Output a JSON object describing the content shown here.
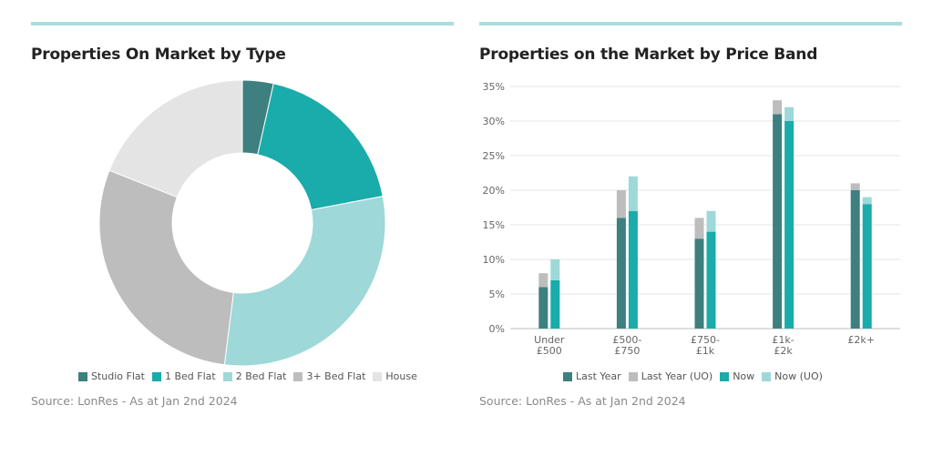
{
  "left": {
    "title": "Properties On Market by Type",
    "source": "Source: LonRes - As at Jan 2nd 2024"
  },
  "right": {
    "title": "Properties on the Market by Price Band",
    "source": "Source: LonRes - As at Jan 2nd 2024"
  },
  "colors": {
    "accent_line": "#a8dde0",
    "studio_flat": "#3e7f7f",
    "1_bed_flat": "#1aabab",
    "2_bed_flat": "#9ed8d8",
    "3plus_bed_flat": "#bdbdbd",
    "house": "#e4e4e4",
    "last_year": "#3e7f7f",
    "last_year_uo": "#bdbdbd",
    "now": "#1aabab",
    "now_uo": "#9ed8d8"
  },
  "chart_data": [
    {
      "type": "pie",
      "subtype": "donut",
      "title": "Properties On Market by Type",
      "labels": [
        "Studio Flat",
        "1 Bed Flat",
        "2 Bed Flat",
        "3+ Bed Flat",
        "House"
      ],
      "values": [
        3.5,
        18.5,
        30,
        29,
        19
      ],
      "colors": [
        "#3e7f7f",
        "#1aabab",
        "#9ed8d8",
        "#bdbdbd",
        "#e4e4e4"
      ],
      "legend": "bottom"
    },
    {
      "type": "bar",
      "subtype": "stacked-grouped",
      "title": "Properties on the Market by Price Band",
      "categories": [
        [
          "Under",
          "£500"
        ],
        [
          "£500-",
          "£750"
        ],
        [
          "£750-",
          "£1k"
        ],
        [
          "£1k-",
          "£2k"
        ],
        [
          "£2k+"
        ]
      ],
      "groups": [
        {
          "name": "Last Year",
          "stack": [
            {
              "series": "Last Year",
              "values": [
                6,
                16,
                13,
                31,
                20
              ]
            },
            {
              "series": "Last Year (UO)",
              "values": [
                2,
                4,
                3,
                2,
                1
              ]
            }
          ]
        },
        {
          "name": "Now",
          "stack": [
            {
              "series": "Now",
              "values": [
                7,
                17,
                14,
                30,
                18
              ]
            },
            {
              "series": "Now (UO)",
              "values": [
                3,
                5,
                3,
                2,
                1
              ]
            }
          ]
        }
      ],
      "legend_entries": [
        "Last Year",
        "Last Year (UO)",
        "Now",
        "Now (UO)"
      ],
      "yticks": [
        "0%",
        "5%",
        "10%",
        "15%",
        "20%",
        "25%",
        "30%",
        "35%"
      ],
      "ylim": [
        0,
        35
      ],
      "grid": true,
      "legend": "bottom"
    }
  ]
}
